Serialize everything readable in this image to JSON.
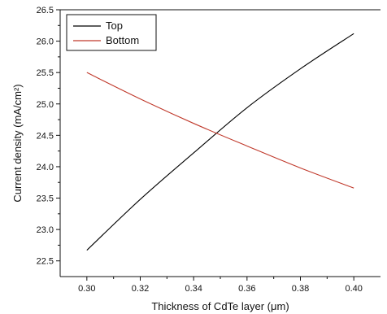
{
  "chart_data": {
    "type": "line",
    "title": "",
    "xlabel": "Thickness of CdTe layer (μm)",
    "ylabel": "Current density (mA/cm²)",
    "xlim": [
      0.29,
      0.41
    ],
    "ylim": [
      22.25,
      26.5
    ],
    "xticks": [
      0.3,
      0.32,
      0.34,
      0.36,
      0.38,
      0.4
    ],
    "xtick_labels": [
      "0.30",
      "0.32",
      "0.34",
      "0.36",
      "0.38",
      "0.40"
    ],
    "yticks": [
      22.5,
      23.0,
      23.5,
      24.0,
      24.5,
      25.0,
      25.5,
      26.0,
      26.5
    ],
    "ytick_labels": [
      "22.5",
      "23.0",
      "23.5",
      "24.0",
      "24.5",
      "25.0",
      "25.5",
      "26.0",
      "26.5"
    ],
    "grid": false,
    "legend": {
      "position": "top-left",
      "entries": [
        "Top",
        "Bottom"
      ]
    },
    "series": [
      {
        "name": "Top",
        "color": "#000000",
        "x": [
          0.3,
          0.32,
          0.34,
          0.36,
          0.38,
          0.4
        ],
        "y": [
          22.67,
          23.48,
          24.22,
          24.94,
          25.56,
          26.12
        ]
      },
      {
        "name": "Bottom",
        "color": "#c0392b",
        "x": [
          0.3,
          0.32,
          0.34,
          0.36,
          0.38,
          0.4
        ],
        "y": [
          25.5,
          25.08,
          24.69,
          24.33,
          23.98,
          23.66
        ]
      }
    ]
  }
}
